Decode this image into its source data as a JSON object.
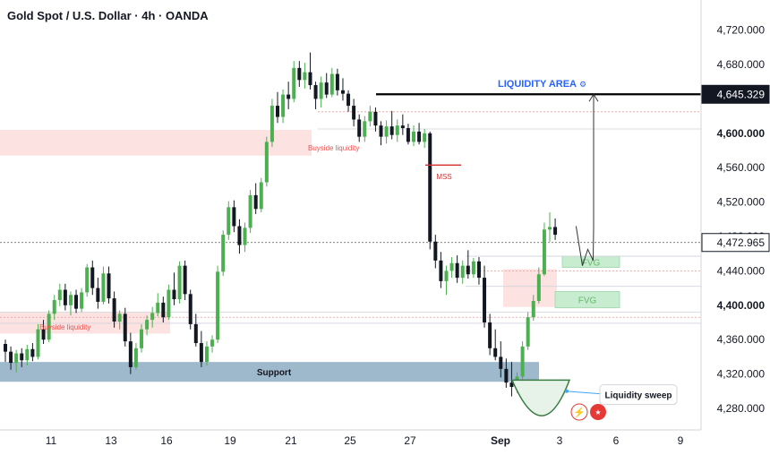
{
  "header": {
    "title": "Gold Spot / U.S. Dollar · 4h · OANDA"
  },
  "colors": {
    "bull": "#4caf50",
    "bear": "#131722",
    "support": "#9fb9cc",
    "fvg": "#c8ecd0",
    "supply": "#fde2e2",
    "liquidity_line": "#000000",
    "liquidity_text": "#2962ff",
    "mss": "#d32f2f",
    "dotted_red": "#ef9a9a",
    "sweep_curve": "#3a7d44"
  },
  "chart_data": {
    "type": "candlestick",
    "ylim": [
      4255,
      4755
    ],
    "y_ticks": [
      "4,720.000",
      "4,680.000",
      "4,600.000",
      "4,560.000",
      "4,520.000",
      "4,480.000",
      "4,440.000",
      "4,400.000",
      "4,360.000",
      "4,320.000",
      "4,280.000"
    ],
    "y_tick_values": [
      4720,
      4680,
      4600,
      4560,
      4520,
      4480,
      4440,
      4400,
      4360,
      4320,
      4280
    ],
    "bold_ticks": [
      4600,
      4400
    ],
    "x_ticks": [
      "11",
      "13",
      "16",
      "19",
      "21",
      "25",
      "27",
      "Sep",
      "3",
      "6",
      "9"
    ],
    "x_tick_bold": "Sep",
    "price_labels": [
      {
        "text": "4,645.329",
        "value": 4645.329,
        "style": "dark"
      },
      {
        "text": "4,472.965",
        "value": 4472.965,
        "style": "light"
      }
    ],
    "candles": [
      [
        4355,
        4360,
        4334,
        4346
      ],
      [
        4346,
        4352,
        4325,
        4333
      ],
      [
        4333,
        4348,
        4322,
        4344
      ],
      [
        4344,
        4350,
        4328,
        4336
      ],
      [
        4336,
        4354,
        4330,
        4349
      ],
      [
        4349,
        4356,
        4335,
        4340
      ],
      [
        4340,
        4378,
        4337,
        4372
      ],
      [
        4372,
        4383,
        4355,
        4360
      ],
      [
        4360,
        4394,
        4357,
        4390
      ],
      [
        4390,
        4412,
        4383,
        4406
      ],
      [
        4406,
        4425,
        4399,
        4418
      ],
      [
        4418,
        4425,
        4394,
        4400
      ],
      [
        4400,
        4416,
        4388,
        4412
      ],
      [
        4412,
        4418,
        4391,
        4396
      ],
      [
        4396,
        4420,
        4392,
        4415
      ],
      [
        4415,
        4448,
        4410,
        4444
      ],
      [
        4444,
        4452,
        4412,
        4420
      ],
      [
        4420,
        4432,
        4396,
        4404
      ],
      [
        4404,
        4445,
        4401,
        4437
      ],
      [
        4437,
        4445,
        4402,
        4408
      ],
      [
        4408,
        4416,
        4374,
        4381
      ],
      [
        4381,
        4394,
        4372,
        4390
      ],
      [
        4390,
        4397,
        4352,
        4358
      ],
      [
        4358,
        4368,
        4320,
        4328
      ],
      [
        4328,
        4356,
        4325,
        4350
      ],
      [
        4350,
        4378,
        4345,
        4372
      ],
      [
        4372,
        4388,
        4365,
        4383
      ],
      [
        4383,
        4398,
        4374,
        4391
      ],
      [
        4391,
        4414,
        4387,
        4403
      ],
      [
        4403,
        4410,
        4380,
        4386
      ],
      [
        4386,
        4424,
        4383,
        4418
      ],
      [
        4418,
        4438,
        4400,
        4407
      ],
      [
        4407,
        4451,
        4402,
        4446
      ],
      [
        4446,
        4452,
        4406,
        4413
      ],
      [
        4413,
        4418,
        4372,
        4378
      ],
      [
        4378,
        4390,
        4352,
        4356
      ],
      [
        4356,
        4370,
        4328,
        4334
      ],
      [
        4334,
        4358,
        4330,
        4352
      ],
      [
        4352,
        4365,
        4345,
        4360
      ],
      [
        4360,
        4446,
        4356,
        4439
      ],
      [
        4439,
        4487,
        4434,
        4482
      ],
      [
        4482,
        4521,
        4476,
        4514
      ],
      [
        4514,
        4522,
        4485,
        4492
      ],
      [
        4492,
        4500,
        4460,
        4470
      ],
      [
        4470,
        4496,
        4462,
        4490
      ],
      [
        4490,
        4534,
        4484,
        4528
      ],
      [
        4528,
        4542,
        4506,
        4512
      ],
      [
        4512,
        4548,
        4508,
        4543
      ],
      [
        4543,
        4596,
        4538,
        4590
      ],
      [
        4590,
        4640,
        4584,
        4632
      ],
      [
        4632,
        4648,
        4612,
        4619
      ],
      [
        4619,
        4651,
        4612,
        4645
      ],
      [
        4645,
        4660,
        4628,
        4640
      ],
      [
        4640,
        4684,
        4636,
        4676
      ],
      [
        4676,
        4684,
        4654,
        4662
      ],
      [
        4662,
        4682,
        4652,
        4671
      ],
      [
        4671,
        4694,
        4651,
        4656
      ],
      [
        4656,
        4660,
        4628,
        4640
      ],
      [
        4640,
        4666,
        4630,
        4659
      ],
      [
        4659,
        4670,
        4641,
        4645
      ],
      [
        4645,
        4676,
        4642,
        4669
      ],
      [
        4669,
        4675,
        4644,
        4650
      ],
      [
        4650,
        4664,
        4638,
        4646
      ],
      [
        4646,
        4650,
        4625,
        4632
      ],
      [
        4632,
        4640,
        4608,
        4616
      ],
      [
        4616,
        4622,
        4590,
        4596
      ],
      [
        4596,
        4620,
        4590,
        4614
      ],
      [
        4614,
        4632,
        4608,
        4625
      ],
      [
        4625,
        4630,
        4602,
        4609
      ],
      [
        4609,
        4614,
        4586,
        4596
      ],
      [
        4596,
        4615,
        4588,
        4608
      ],
      [
        4608,
        4626,
        4593,
        4598
      ],
      [
        4598,
        4616,
        4590,
        4609
      ],
      [
        4609,
        4622,
        4598,
        4606
      ],
      [
        4606,
        4611,
        4587,
        4590
      ],
      [
        4590,
        4609,
        4585,
        4602
      ],
      [
        4602,
        4612,
        4587,
        4590
      ],
      [
        4590,
        4605,
        4583,
        4600
      ],
      [
        4600,
        4602,
        4465,
        4474
      ],
      [
        4474,
        4482,
        4443,
        4452
      ],
      [
        4452,
        4462,
        4420,
        4428
      ],
      [
        4428,
        4446,
        4412,
        4440
      ],
      [
        4440,
        4456,
        4432,
        4449
      ],
      [
        4449,
        4458,
        4426,
        4432
      ],
      [
        4432,
        4452,
        4425,
        4446
      ],
      [
        4446,
        4464,
        4431,
        4436
      ],
      [
        4436,
        4455,
        4432,
        4451
      ],
      [
        4451,
        4456,
        4424,
        4432
      ],
      [
        4432,
        4446,
        4374,
        4380
      ],
      [
        4380,
        4390,
        4342,
        4350
      ],
      [
        4350,
        4372,
        4336,
        4340
      ],
      [
        4340,
        4358,
        4316,
        4326
      ],
      [
        4326,
        4338,
        4304,
        4310
      ],
      [
        4310,
        4334,
        4294,
        4305
      ],
      [
        4305,
        4322,
        4298,
        4317
      ],
      [
        4317,
        4358,
        4314,
        4352
      ],
      [
        4352,
        4392,
        4348,
        4386
      ],
      [
        4386,
        4412,
        4382,
        4405
      ],
      [
        4405,
        4444,
        4402,
        4436
      ],
      [
        4436,
        4496,
        4434,
        4488
      ],
      [
        4488,
        4508,
        4474,
        4491
      ],
      [
        4491,
        4501,
        4476,
        4482
      ]
    ],
    "zones": [
      {
        "name": "supply-zone-upper",
        "from": 4604,
        "to": 4574
      },
      {
        "name": "supply-zone-lower",
        "from": 4392,
        "to": 4367
      },
      {
        "name": "support-zone",
        "from": 4334,
        "to": 4311,
        "label": "Support"
      },
      {
        "name": "fvg-upper",
        "from": 4457,
        "to": 4444,
        "label": "FVG"
      },
      {
        "name": "fvg-lower",
        "from": 4416,
        "to": 4397,
        "label": "FVG"
      },
      {
        "name": "pink-gap-zone",
        "from": 4442,
        "to": 4398
      }
    ],
    "annotations": [
      {
        "text": "LIQUIDITY AREA",
        "value": 4650
      },
      {
        "text": "Buyside liquidity",
        "value": 4583
      },
      {
        "text": "Buyside liquidity",
        "value": 4375
      },
      {
        "text": "MSS",
        "value": 4550
      },
      {
        "text": "Liquidity sweep",
        "value": 4296
      }
    ]
  }
}
